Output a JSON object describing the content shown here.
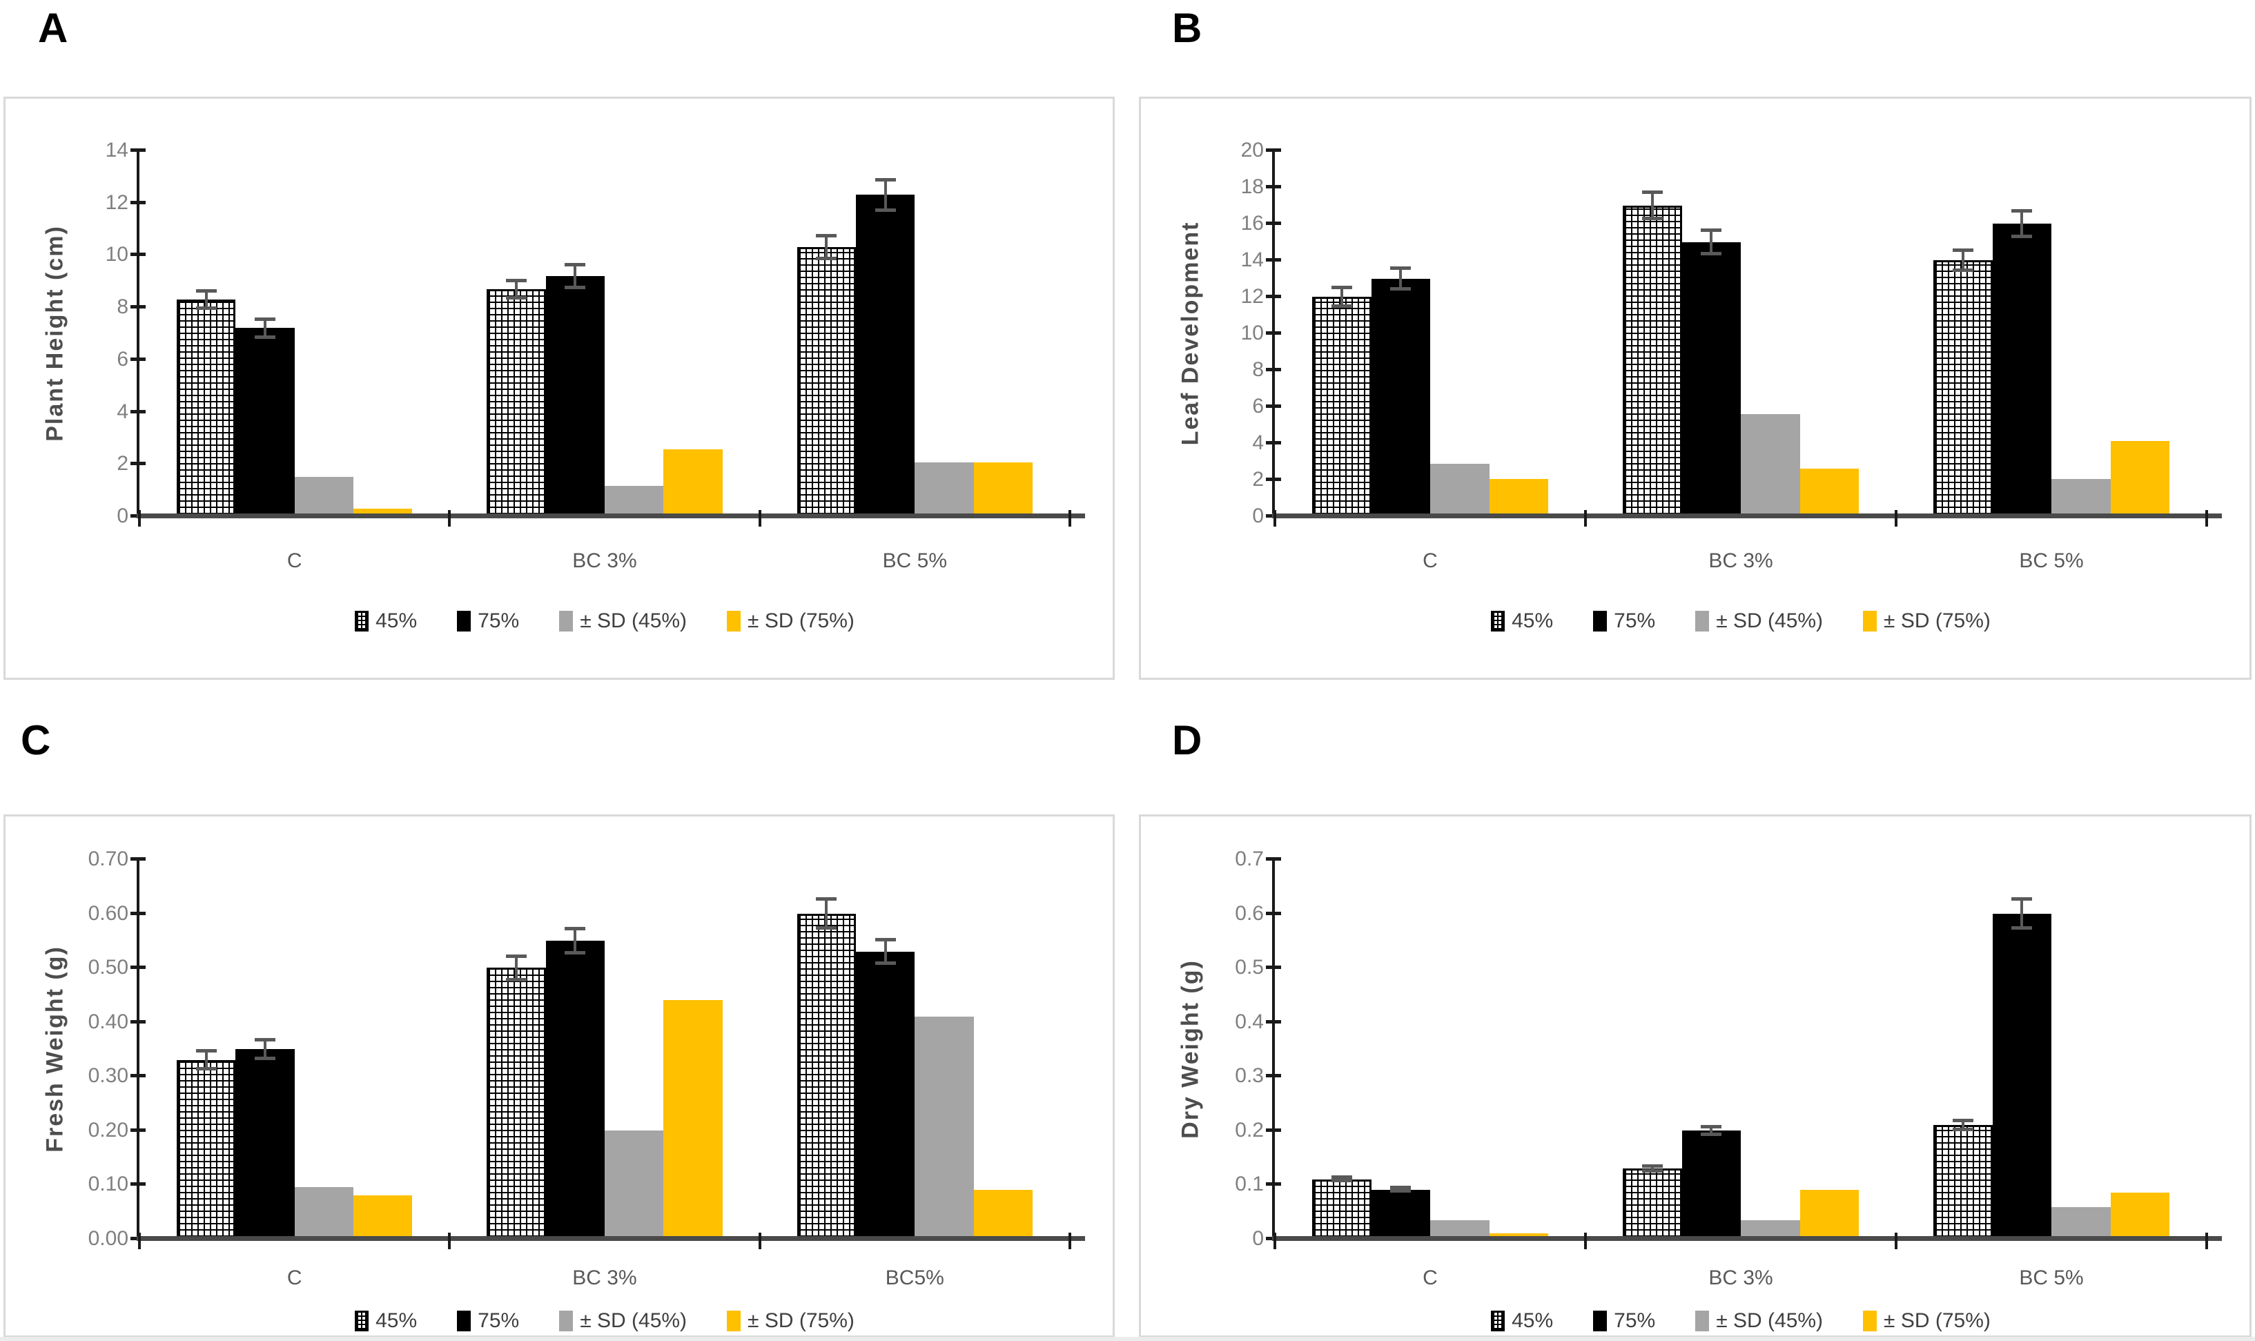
{
  "figure": {
    "panel_labels": [
      "A",
      "B",
      "C",
      "D"
    ]
  },
  "chart_data": [
    {
      "type": "bar",
      "panel_label": "A",
      "ylabel": "Plant Height (cm)",
      "xlabel": "",
      "ylim": [
        0,
        14
      ],
      "ytick_values": [
        0,
        2,
        4,
        6,
        8,
        10,
        12,
        14
      ],
      "ytick_labels": [
        "0",
        "2",
        "4",
        "6",
        "8",
        "10",
        "12",
        "14"
      ],
      "categories": [
        "C",
        "BC 3%",
        "BC 5%"
      ],
      "grid": false,
      "legend_position": "bottom",
      "legend": [
        "45%",
        "75%",
        "± SD (45%)",
        "± SD (75%)"
      ],
      "series": [
        {
          "name": "45%",
          "fill": "hatch",
          "color": "#000000",
          "values": [
            8.3,
            8.7,
            10.3
          ],
          "errors": [
            0.4,
            0.4,
            0.5
          ]
        },
        {
          "name": "75%",
          "fill": "black",
          "color": "#000000",
          "values": [
            7.2,
            9.2,
            12.3
          ],
          "errors": [
            0.4,
            0.5,
            0.65
          ]
        },
        {
          "name": "± SD (45%)",
          "fill": "gray",
          "color": "#a5a5a5",
          "values": [
            1.5,
            1.15,
            2.05
          ]
        },
        {
          "name": "± SD (75%)",
          "fill": "yellow",
          "color": "#ffc000",
          "values": [
            0.3,
            2.55,
            2.05
          ]
        }
      ]
    },
    {
      "type": "bar",
      "panel_label": "B",
      "ylabel": "Leaf Development",
      "xlabel": "",
      "ylim": [
        0,
        20
      ],
      "ytick_values": [
        0,
        2,
        4,
        6,
        8,
        10,
        12,
        14,
        16,
        18,
        20
      ],
      "ytick_labels": [
        "0",
        "2",
        "4",
        "6",
        "8",
        "10",
        "12",
        "14",
        "16",
        "18",
        "20"
      ],
      "categories": [
        "C",
        "BC 3%",
        "BC 5%"
      ],
      "grid": false,
      "legend_position": "bottom",
      "legend": [
        "45%",
        "75%",
        "± SD (45%)",
        "± SD (75%)"
      ],
      "series": [
        {
          "name": "45%",
          "fill": "hatch",
          "color": "#000000",
          "values": [
            12,
            17,
            14
          ],
          "errors": [
            0.6,
            0.8,
            0.65
          ]
        },
        {
          "name": "75%",
          "fill": "black",
          "color": "#000000",
          "values": [
            13,
            15,
            16
          ],
          "errors": [
            0.65,
            0.75,
            0.8
          ]
        },
        {
          "name": "± SD (45%)",
          "fill": "gray",
          "color": "#a5a5a5",
          "values": [
            2.85,
            5.6,
            2.05
          ]
        },
        {
          "name": "± SD (75%)",
          "fill": "yellow",
          "color": "#ffc000",
          "values": [
            2.05,
            2.6,
            4.1
          ]
        }
      ]
    },
    {
      "type": "bar",
      "panel_label": "C",
      "ylabel": "Fresh Weight (g)",
      "xlabel": "",
      "ylim": [
        0,
        0.7
      ],
      "ytick_values": [
        0,
        0.1,
        0.2,
        0.3,
        0.4,
        0.5,
        0.6,
        0.7
      ],
      "ytick_labels": [
        "0.00",
        "0.10",
        "0.20",
        "0.30",
        "0.40",
        "0.50",
        "0.60",
        "0.70"
      ],
      "categories": [
        "C",
        "BC 3%",
        "BC5%"
      ],
      "grid": false,
      "legend_position": "bottom",
      "legend": [
        "45%",
        "75%",
        "± SD (45%)",
        "± SD (75%)"
      ],
      "series": [
        {
          "name": "45%",
          "fill": "hatch",
          "color": "#000000",
          "values": [
            0.33,
            0.5,
            0.6
          ],
          "errors": [
            0.02,
            0.025,
            0.03
          ]
        },
        {
          "name": "75%",
          "fill": "black",
          "color": "#000000",
          "values": [
            0.35,
            0.55,
            0.53
          ],
          "errors": [
            0.02,
            0.025,
            0.025
          ]
        },
        {
          "name": "± SD (45%)",
          "fill": "gray",
          "color": "#a5a5a5",
          "values": [
            0.095,
            0.2,
            0.41
          ]
        },
        {
          "name": "± SD (75%)",
          "fill": "yellow",
          "color": "#ffc000",
          "values": [
            0.08,
            0.44,
            0.09
          ]
        }
      ]
    },
    {
      "type": "bar",
      "panel_label": "D",
      "ylabel": "Dry Weight (g)",
      "xlabel": "",
      "ylim": [
        0,
        0.7
      ],
      "ytick_values": [
        0,
        0.1,
        0.2,
        0.3,
        0.4,
        0.5,
        0.6,
        0.7
      ],
      "ytick_labels": [
        "0",
        "0.1",
        "0.2",
        "0.3",
        "0.4",
        "0.5",
        "0.6",
        "0.7"
      ],
      "categories": [
        "C",
        "BC 3%",
        "BC 5%"
      ],
      "grid": false,
      "legend_position": "bottom",
      "legend": [
        "45%",
        "75%",
        "± SD (45%)",
        "± SD (75%)"
      ],
      "series": [
        {
          "name": "45%",
          "fill": "hatch",
          "color": "#000000",
          "values": [
            0.11,
            0.13,
            0.21
          ],
          "errors": [
            0.005,
            0.008,
            0.012
          ]
        },
        {
          "name": "75%",
          "fill": "black",
          "color": "#000000",
          "values": [
            0.09,
            0.2,
            0.6
          ],
          "errors": [
            0.005,
            0.01,
            0.03
          ]
        },
        {
          "name": "± SD (45%)",
          "fill": "gray",
          "color": "#a5a5a5",
          "values": [
            0.035,
            0.035,
            0.058
          ]
        },
        {
          "name": "± SD (75%)",
          "fill": "yellow",
          "color": "#ffc000",
          "values": [
            0.01,
            0.09,
            0.085
          ]
        }
      ]
    }
  ]
}
